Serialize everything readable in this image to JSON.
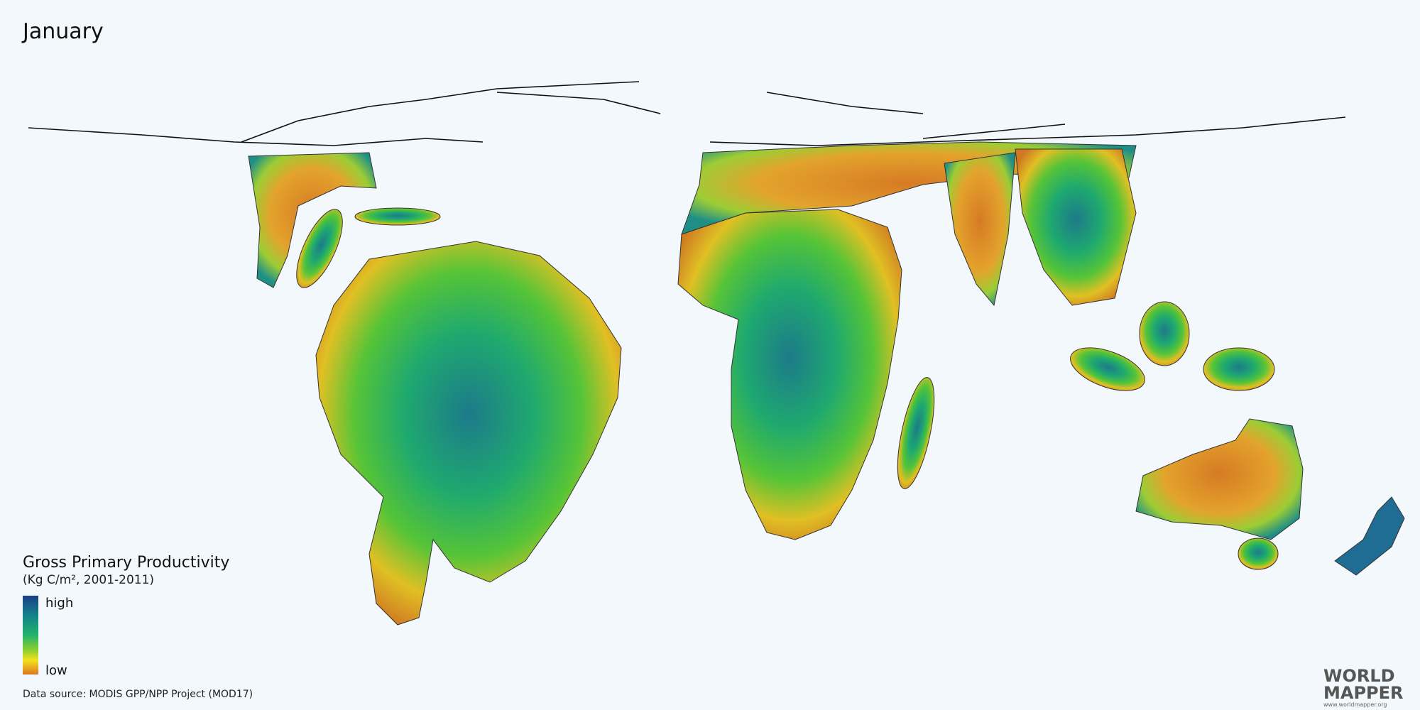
{
  "title": "January",
  "legend": {
    "title": "Gross Primary Productivity",
    "subtitle": "(Kg C/m², 2001-2011)",
    "high": "high",
    "low": "low"
  },
  "source": "Data source: MODIS GPP/NPP Project (MOD17)",
  "logo": {
    "line1": "WORLD",
    "line2": "MAPPER",
    "url": "www.worldmapper.org"
  }
}
